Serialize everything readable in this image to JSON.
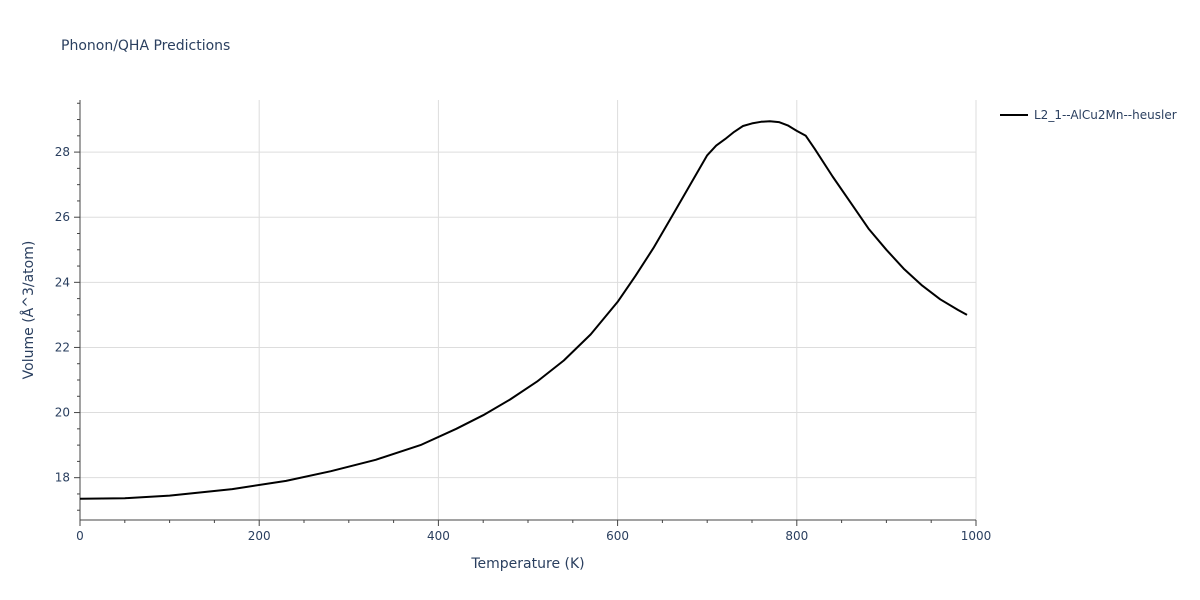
{
  "chart_data": {
    "type": "line",
    "title": "Phonon/QHA Predictions",
    "xlabel": "Temperature (K)",
    "ylabel": "Volume (Å^3/atom)",
    "xlim": [
      0,
      1000
    ],
    "ylim": [
      16.7,
      29.6
    ],
    "x_ticks": [
      0,
      200,
      400,
      600,
      800,
      1000
    ],
    "y_ticks": [
      18,
      20,
      22,
      24,
      26,
      28
    ],
    "grid": true,
    "legend_position": "top-right",
    "series": [
      {
        "name": "L2_1--AlCu2Mn--heusler",
        "color": "#000000",
        "x": [
          0,
          50,
          100,
          170,
          230,
          280,
          330,
          380,
          420,
          450,
          480,
          510,
          540,
          570,
          600,
          620,
          640,
          660,
          680,
          700,
          710,
          720,
          730,
          740,
          750,
          760,
          770,
          780,
          790,
          800,
          810,
          820,
          840,
          860,
          880,
          900,
          920,
          940,
          960,
          980,
          990
        ],
        "y": [
          17.35,
          17.37,
          17.45,
          17.65,
          17.9,
          18.2,
          18.55,
          19.0,
          19.5,
          19.92,
          20.4,
          20.95,
          21.6,
          22.4,
          23.4,
          24.2,
          25.05,
          26.0,
          26.95,
          27.9,
          28.2,
          28.4,
          28.62,
          28.8,
          28.88,
          28.93,
          28.95,
          28.92,
          28.82,
          28.65,
          28.5,
          28.1,
          27.25,
          26.45,
          25.65,
          25.0,
          24.4,
          23.9,
          23.48,
          23.15,
          23.0
        ]
      }
    ]
  }
}
